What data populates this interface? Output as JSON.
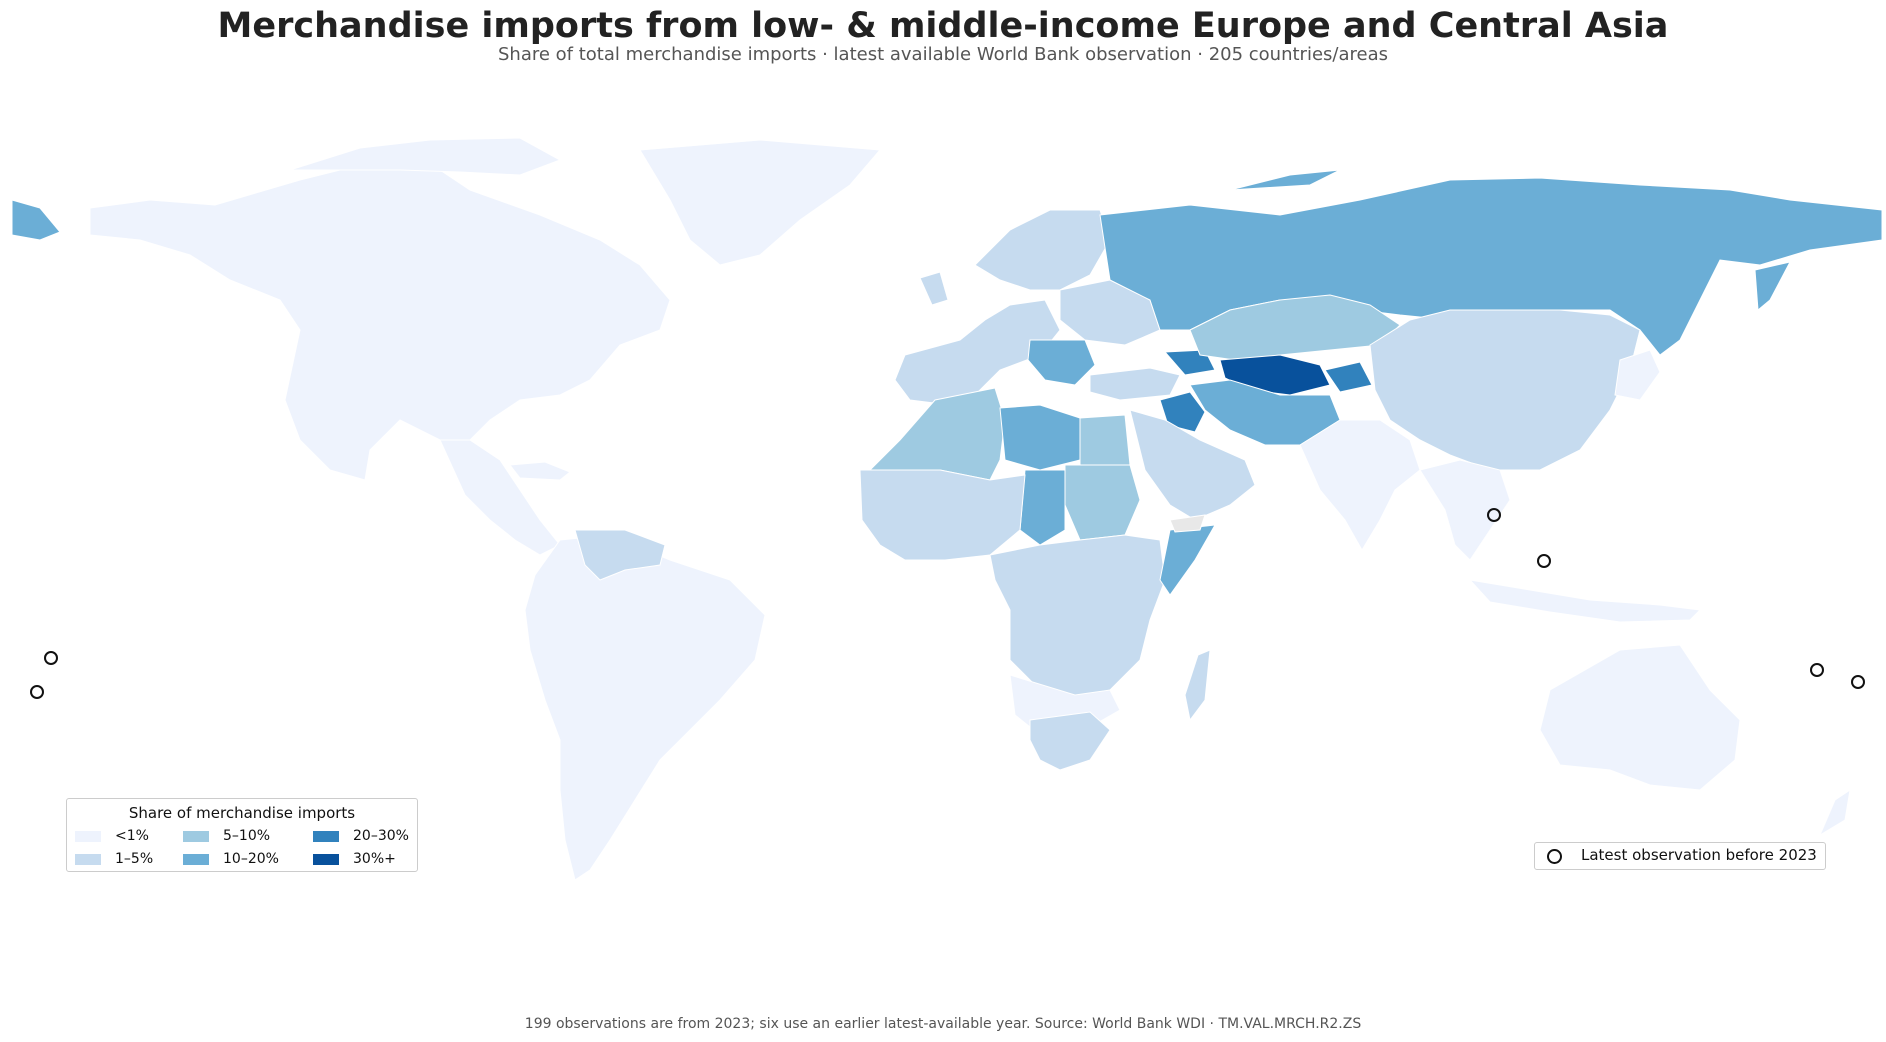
{
  "title": "Merchandise imports from low- & middle-income Europe and Central Asia",
  "subtitle": "Share of total merchandise imports · latest available World Bank observation · 205 countries/areas",
  "legend": {
    "title": "Share of merchandise imports",
    "bins": [
      {
        "label": "<1%",
        "color": "#eef3fd"
      },
      {
        "label": "1–5%",
        "color": "#c6dbef"
      },
      {
        "label": "5–10%",
        "color": "#9ecae1"
      },
      {
        "label": "10–20%",
        "color": "#6baed6"
      },
      {
        "label": "20–30%",
        "color": "#3182bd"
      },
      {
        "label": "30%+",
        "color": "#08519c"
      }
    ],
    "marker_label": "Latest observation before 2023"
  },
  "footnote": "199 observations are from 2023; six use an earlier latest-available year. Source: World Bank WDI · TM.VAL.MRCH.R2.ZS",
  "map": {
    "no_data_color": "#e8e8e8",
    "border_color": "#ffffff",
    "regions": [
      {
        "name": "North America",
        "bin": 0
      },
      {
        "name": "Greenland",
        "bin": 0
      },
      {
        "name": "Central America & Caribbean",
        "bin": 0
      },
      {
        "name": "South America",
        "bin": 0
      },
      {
        "name": "Venezuela",
        "bin": 1
      },
      {
        "name": "Western Europe",
        "bin": 1
      },
      {
        "name": "Scandinavia",
        "bin": 1
      },
      {
        "name": "Ukraine",
        "bin": 1
      },
      {
        "name": "Balkans",
        "bin": 3
      },
      {
        "name": "Turkey",
        "bin": 1
      },
      {
        "name": "Russia",
        "bin": 3
      },
      {
        "name": "Kazakhstan",
        "bin": 2
      },
      {
        "name": "Turkmenistan & Uzbekistan",
        "bin": 5
      },
      {
        "name": "Iran & Afghanistan",
        "bin": 3
      },
      {
        "name": "Iraq",
        "bin": 4
      },
      {
        "name": "Caucasus",
        "bin": 4
      },
      {
        "name": "Arabian Peninsula",
        "bin": 1
      },
      {
        "name": "Algeria & Morocco",
        "bin": 2
      },
      {
        "name": "Libya",
        "bin": 3
      },
      {
        "name": "Egypt",
        "bin": 2
      },
      {
        "name": "Sudan",
        "bin": 2
      },
      {
        "name": "Chad",
        "bin": 3
      },
      {
        "name": "West Africa",
        "bin": 1
      },
      {
        "name": "Central & East Africa",
        "bin": 1
      },
      {
        "name": "Somalia",
        "bin": 3
      },
      {
        "name": "Southern Africa",
        "bin": 0
      },
      {
        "name": "South Africa",
        "bin": 1
      },
      {
        "name": "Madagascar",
        "bin": 1
      },
      {
        "name": "China & Mongolia",
        "bin": 1
      },
      {
        "name": "India & South Asia",
        "bin": 0
      },
      {
        "name": "Southeast Asia",
        "bin": 0
      },
      {
        "name": "Japan & Korea",
        "bin": 0
      },
      {
        "name": "Australia & Oceania",
        "bin": 0
      }
    ]
  }
}
